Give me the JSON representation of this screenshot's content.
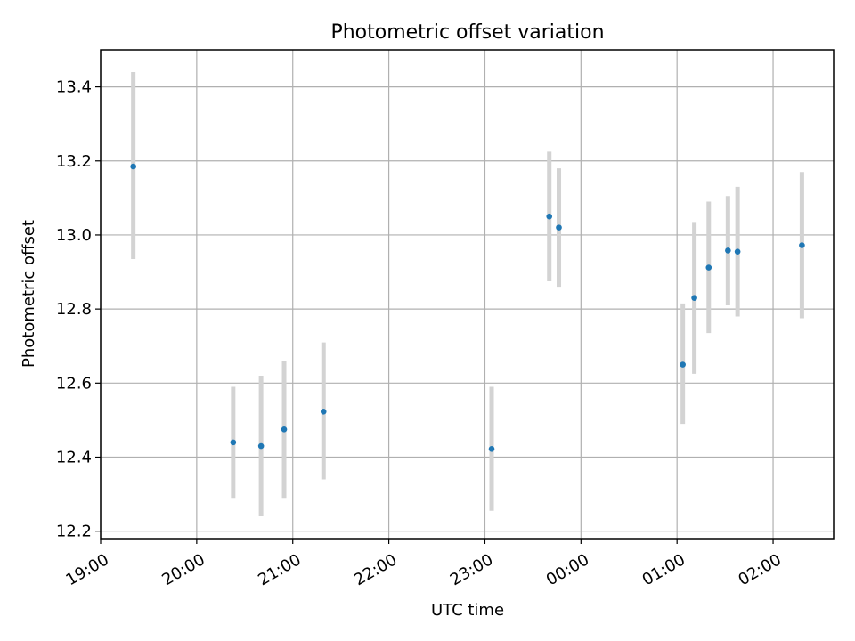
{
  "chart_data": {
    "type": "scatter",
    "title": "Photometric offset variation",
    "xlabel": "UTC time",
    "ylabel": "Photometric offset",
    "x_ticks": [
      "19:00",
      "20:00",
      "21:00",
      "22:00",
      "23:00",
      "00:00",
      "01:00",
      "02:00"
    ],
    "y_ticks": [
      "12.2",
      "12.4",
      "12.6",
      "12.8",
      "13.0",
      "13.2",
      "13.4"
    ],
    "x_unit": "hours since 19:00 UTC",
    "xlim": [
      0.0,
      7.63
    ],
    "ylim": [
      12.18,
      13.5
    ],
    "grid": true,
    "marker_color": "#1f77b4",
    "errorbar_color": "#d3d3d3",
    "points": [
      {
        "time": "19:20",
        "t": 0.34,
        "y": 13.185,
        "ylow": 12.935,
        "yhigh": 13.44
      },
      {
        "time": "20:23",
        "t": 1.38,
        "y": 12.44,
        "ylow": 12.29,
        "yhigh": 12.59
      },
      {
        "time": "20:40",
        "t": 1.67,
        "y": 12.43,
        "ylow": 12.24,
        "yhigh": 12.62
      },
      {
        "time": "20:55",
        "t": 1.91,
        "y": 12.475,
        "ylow": 12.29,
        "yhigh": 12.66
      },
      {
        "time": "21:19",
        "t": 2.32,
        "y": 12.523,
        "ylow": 12.34,
        "yhigh": 12.71
      },
      {
        "time": "23:04",
        "t": 4.07,
        "y": 12.422,
        "ylow": 12.255,
        "yhigh": 12.59
      },
      {
        "time": "23:40",
        "t": 4.67,
        "y": 13.05,
        "ylow": 12.875,
        "yhigh": 13.225
      },
      {
        "time": "23:46",
        "t": 4.77,
        "y": 13.02,
        "ylow": 12.86,
        "yhigh": 13.18
      },
      {
        "time": "01:04",
        "t": 6.06,
        "y": 12.65,
        "ylow": 12.49,
        "yhigh": 12.815
      },
      {
        "time": "01:11",
        "t": 6.18,
        "y": 12.83,
        "ylow": 12.625,
        "yhigh": 13.035
      },
      {
        "time": "01:20",
        "t": 6.33,
        "y": 12.912,
        "ylow": 12.735,
        "yhigh": 13.09
      },
      {
        "time": "01:32",
        "t": 6.53,
        "y": 12.958,
        "ylow": 12.81,
        "yhigh": 13.105
      },
      {
        "time": "01:38",
        "t": 6.63,
        "y": 12.955,
        "ylow": 12.78,
        "yhigh": 13.13
      },
      {
        "time": "02:18",
        "t": 7.3,
        "y": 12.972,
        "ylow": 12.775,
        "yhigh": 13.17
      }
    ]
  }
}
